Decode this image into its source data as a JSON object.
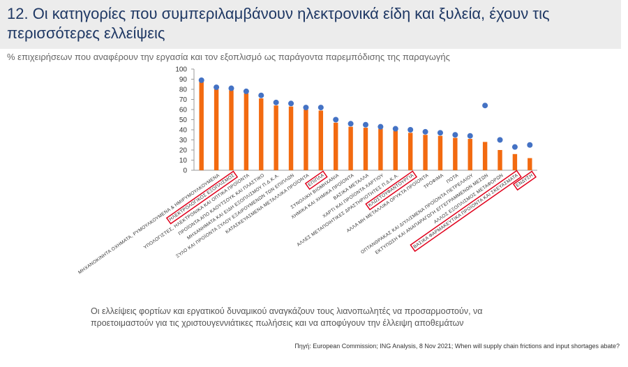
{
  "header": {
    "title": "12. Οι κατηγορίες που συμπεριλαμβάνουν ηλεκτρονικά είδη και ξυλεία, έχουν τις περισσότερες ελλείψεις",
    "subtitle": "% επιχειρήσεων που αναφέρουν την εργασία και τον εξοπλισμό ως παράγοντα παρεμπόδισης της παραγωγής"
  },
  "chart_data": {
    "type": "bar",
    "categories": [
      null,
      "ΜΗΧΑΝΟΚΙΝΗΤΑ ΟΧΗΜΑΤΑ, ΡΥΜΟΥΛΚΟΥΜΕΝΑ & ΗΜΙΡΥΜΟΥΛΚΟΥΜΕΝΑ",
      "ΗΛΕΚΤΡΟΛΟΓΙΚΟΣ ΕΞΟΠΛΙΣΜΟΣ",
      "ΥΠΟΛΟΓΙΣΤΕΣ, ΗΛΕΚΤΡΟΝΙΚΑ ΚΑΙ ΟΠΤΙΚΑ ΠΡΟΪΟΝΤΑ",
      "ΠΡΟΪΟΝΤΑ ΑΠΟ ΚΑΟΥΤΣΟΥΚ ΚΑΙ ΠΛΑΣΤΙΚΟ",
      "ΜΗΧΑΝΗΜΑΤΑ ΚΑΙ ΕΙΔΗ ΕΞΟΠΛΙΣΜΟΥ Π.Δ.Κ.Α.",
      "ΞΥΛΟ ΚΑΙ ΠΡΟΪΟΝΤΑ ΞΥΛΟΥ ΕΞΑΙΡΟΥΜΕΝΩΝ ΤΩΝ ΕΠΙΠΛΩΝ",
      "ΚΑΤΑΣΚΕΥΑΣΜΕΝΑ ΜΕΤΑΛΛΙΚΑ ΠΡΟΪΟΝΤΑ",
      "ΕΠΙΠΛΑ",
      "ΣΥΝΟΛΙΚΗ ΒΙΟΜΗΧΑΝΙΑ",
      "ΧΗΜΙΚΑ ΚΑΙ ΧΗΜΙΚΑ ΠΡΟΪΟΝΤΑ",
      "ΒΑΣΙΚΑ ΜΕΤΑΛΛΑ",
      "ΧΑΡΤΙ ΚΑΙ ΠΡΟΪΟΝΤΑ ΧΑΡΤΙΟΥ",
      "ΑΛΛΕΣ ΜΕΤΑΠΟΙΗΤΙΚΕΣ ΔΡΑΣΤΗΡΙΟΤΗΤΕΣ Π.Δ.Κ.Α.",
      "ΚΛΩΣΤΟΥΦΑΝΤΟΥΡΓΙΑ",
      "ΑΛΛΑ ΜΗ ΜΕΤΑΛΛΙΚΑ ΟΡΥΚΤΑ ΠΡΟΪΟΝΤΑ",
      "ΤΡΟΦΙΜΑ",
      "ΠΟΤΑ",
      "ΟΠΤΑΝΘΡΑΚΑΣ ΚΑΙ ΔΙΥΛΙΣΜΕΝΑ ΠΡΟΪΟΝΤΑ ΠΕΤΡΕΛΑΙΟΥ",
      "ΕΚΤΥΠΩΣΗ ΚΑΙ ΑΝΑΠΑΡΑΓΩΓΗ ΕΓΓΕΓΡΑΜΜΕΝΩΝ ΜΕΣΩΝ",
      "ΑΛΛΟΣ ΕΞΟΠΛΙΣΜΟΣ ΜΕΤΑΦΟΡΩΝ",
      "ΒΑΣΙΚΑ ΦΑΡΜΑΚΕΥΤΙΚΑ ΠΡΟΪΟΝΤΑ ΚΑΙ ΣΚΕΥΑΣΜΑΤΑ",
      "ΕΝΔΥΣΗ"
    ],
    "series": [
      {
        "type": "bar",
        "color": "#f26a10",
        "values": [
          88,
          80,
          79,
          76,
          71,
          64,
          63,
          60,
          59,
          47,
          43,
          42,
          41,
          39,
          37,
          35,
          34,
          32,
          31,
          28,
          20,
          16,
          12
        ]
      },
      {
        "type": "dot",
        "color": "#4472c4",
        "values": [
          89,
          82,
          81,
          78,
          74,
          67,
          66,
          62,
          62,
          50,
          46,
          45,
          43,
          41,
          40,
          38,
          37,
          35,
          34,
          64,
          30,
          23,
          25
        ]
      }
    ],
    "highlighted_categories": [
      2,
      8,
      14,
      21,
      22
    ],
    "highlight_color": "#e0001b",
    "ylim": [
      0,
      100
    ],
    "yticks": [
      0,
      10,
      20,
      30,
      40,
      50,
      60,
      70,
      80,
      90,
      100
    ]
  },
  "caption": "Οι ελλείψεις φορτίων και εργατικού δυναμικού αναγκάζουν τους λιανοπωλητές να προσαρμοστούν, να προετοιμαστούν για τις χριστουγεννιάτικες πωλήσεις και να αποφύγουν την έλλειψη αποθεμάτων",
  "source": "Πηγή: European Commission; ING Analysis, 8 Nov 2021; When will supply chain frictions and input shortages abate?"
}
